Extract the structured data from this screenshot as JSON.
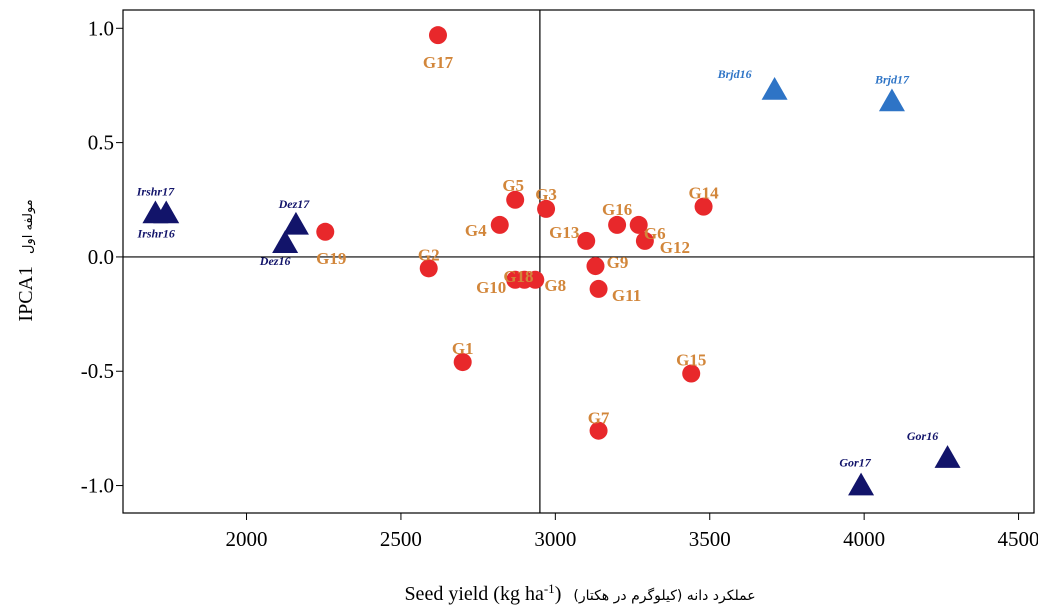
{
  "chart_data": {
    "type": "scatter",
    "xlabel_parts": {
      "fa": "عملکرد دانه (کیلوگرم در هکتار)",
      "en": "Seed yield (kg ha",
      "sup": "-1",
      "close": ")"
    },
    "ylabel_parts": {
      "en": "IPCA1",
      "fa": "مولفه اول"
    },
    "xlim": [
      1600,
      4550
    ],
    "ylim": [
      -1.12,
      1.08
    ],
    "x_ticks": [
      2000,
      2500,
      3000,
      3500,
      4000,
      4500
    ],
    "y_ticks": [
      1.0,
      0.5,
      0.0,
      -0.5,
      -1.0
    ],
    "y_tick_labels": [
      "1.0",
      "0.5",
      "0.0",
      "-0.5",
      "-1.0"
    ],
    "reference_lines": {
      "x": 2950,
      "y": 0.0
    },
    "colors": {
      "genotype": "#e8282b",
      "genotype_label": "#d2863a",
      "env_dark": "#12146a",
      "env_light": "#2e74c6"
    },
    "genotypes": [
      {
        "label": "G1",
        "x": 2700,
        "y": -0.46
      },
      {
        "label": "G2",
        "x": 2590,
        "y": -0.05
      },
      {
        "label": "G3",
        "x": 2970,
        "y": 0.21
      },
      {
        "label": "G4",
        "x": 2820,
        "y": 0.14
      },
      {
        "label": "G5",
        "x": 2870,
        "y": 0.25
      },
      {
        "label": "G6",
        "x": 3270,
        "y": 0.14
      },
      {
        "label": "G7",
        "x": 3140,
        "y": -0.76
      },
      {
        "label": "G8",
        "x": 2935,
        "y": -0.1
      },
      {
        "label": "G9",
        "x": 3130,
        "y": -0.04
      },
      {
        "label": "G10",
        "x": 2870,
        "y": -0.1
      },
      {
        "label": "G11",
        "x": 3140,
        "y": -0.14
      },
      {
        "label": "G12",
        "x": 3290,
        "y": 0.07
      },
      {
        "label": "G13",
        "x": 3100,
        "y": 0.07
      },
      {
        "label": "G14",
        "x": 3480,
        "y": 0.22
      },
      {
        "label": "G15",
        "x": 3440,
        "y": -0.51
      },
      {
        "label": "G16",
        "x": 3200,
        "y": 0.14
      },
      {
        "label": "G17",
        "x": 2620,
        "y": 0.97
      },
      {
        "label": "G18",
        "x": 2900,
        "y": -0.1
      },
      {
        "label": "G19",
        "x": 2255,
        "y": 0.11
      }
    ],
    "environments": [
      {
        "label": "Brjd16",
        "x": 3710,
        "y": 0.73,
        "color": "light"
      },
      {
        "label": "Brjd17",
        "x": 4090,
        "y": 0.68,
        "color": "light"
      },
      {
        "label": "Irshr17",
        "x": 1705,
        "y": 0.19,
        "color": "dark"
      },
      {
        "label": "Irshr16",
        "x": 1740,
        "y": 0.19,
        "color": "dark"
      },
      {
        "label": "Dez17",
        "x": 2160,
        "y": 0.14,
        "color": "dark"
      },
      {
        "label": "Dez16",
        "x": 2125,
        "y": 0.06,
        "color": "dark"
      },
      {
        "label": "Gor16",
        "x": 4270,
        "y": -0.88,
        "color": "dark"
      },
      {
        "label": "Gor17",
        "x": 3990,
        "y": -1.0,
        "color": "dark"
      }
    ]
  }
}
